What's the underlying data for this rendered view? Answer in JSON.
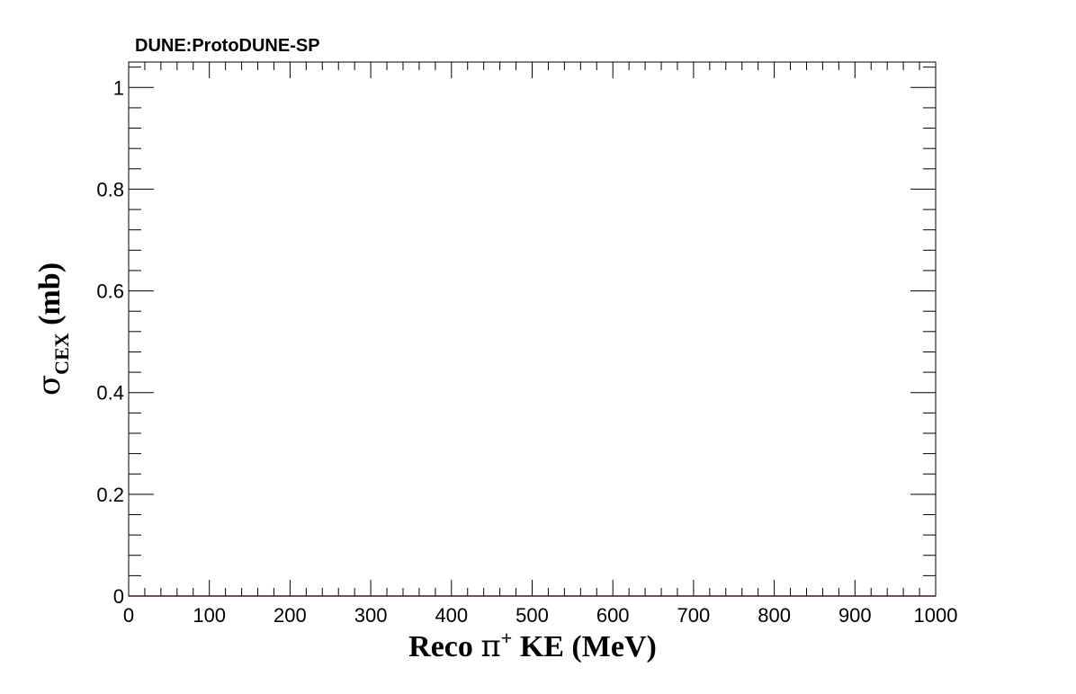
{
  "chart_data": {
    "type": "line",
    "title": "DUNE:ProtoDUNE-SP",
    "xlabel": {
      "prefix": "Reco  ",
      "symbol": "π",
      "superscript": "+",
      "suffix": " KE (MeV)"
    },
    "ylabel": {
      "symbol": "σ",
      "subscript": "CEX",
      "suffix": " (mb)"
    },
    "xlim": [
      0,
      1000
    ],
    "ylim": [
      0,
      1.05
    ],
    "x_ticks": [
      "0",
      "100",
      "200",
      "300",
      "400",
      "500",
      "600",
      "700",
      "800",
      "900",
      "1000"
    ],
    "y_ticks": [
      "0",
      "0.2",
      "0.4",
      "0.6",
      "0.8",
      "1"
    ],
    "x_tick_values": [
      0,
      100,
      200,
      300,
      400,
      500,
      600,
      700,
      800,
      900,
      1000
    ],
    "y_tick_values": [
      0,
      0.2,
      0.4,
      0.6,
      0.8,
      1
    ],
    "grid": false,
    "series": [
      {
        "color": "#e03030",
        "x": [
          0,
          1000
        ],
        "y": [
          0,
          0
        ]
      }
    ]
  }
}
